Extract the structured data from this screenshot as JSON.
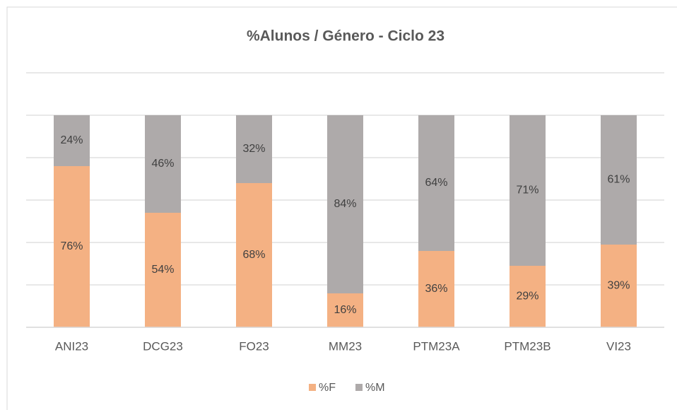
{
  "chart_data": {
    "type": "stacked_bar",
    "title": "%Alunos / Género - Ciclo 23",
    "categories": [
      "ANI23",
      "DCG23",
      "FO23",
      "MM23",
      "PTM23A",
      "PTM23B",
      "VI23"
    ],
    "series": [
      {
        "name": "%F",
        "color": "#f4b183",
        "values": [
          76,
          54,
          68,
          16,
          36,
          29,
          39
        ],
        "value_labels": [
          "76%",
          "54%",
          "68%",
          "16%",
          "36%",
          "29%",
          "39%"
        ]
      },
      {
        "name": "%M",
        "color": "#aeaaaa",
        "values": [
          24,
          46,
          32,
          84,
          64,
          71,
          61
        ],
        "value_labels": [
          "24%",
          "46%",
          "32%",
          "84%",
          "64%",
          "71%",
          "61%"
        ]
      }
    ],
    "ylim": [
      0,
      120
    ],
    "yticks": [
      0,
      20,
      40,
      60,
      80,
      100,
      120
    ],
    "grid": true,
    "legend": "bottom"
  }
}
